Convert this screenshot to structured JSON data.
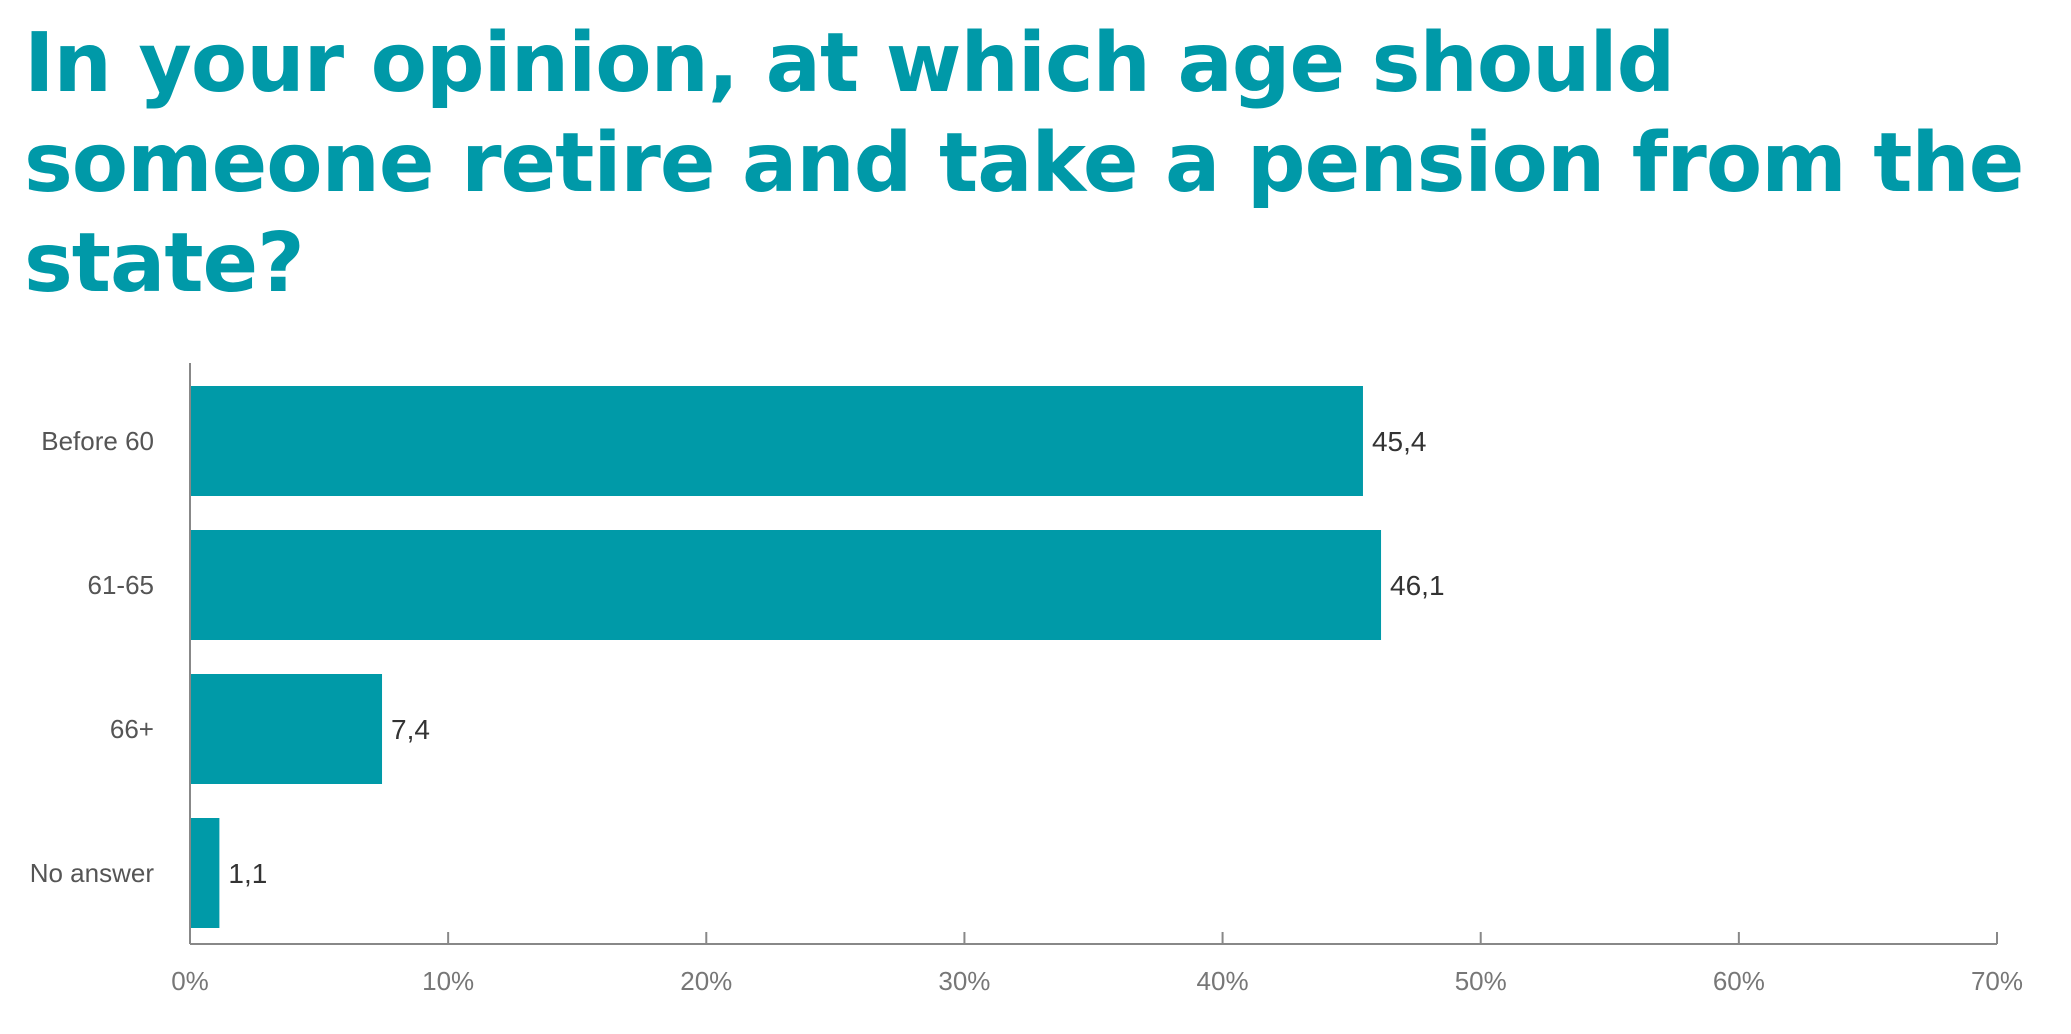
{
  "chart_data": {
    "type": "bar",
    "orientation": "horizontal",
    "title": "In your opinion, at which age should someone retire and take a pension from the state?",
    "categories": [
      "Before 60",
      "61-65",
      "66+",
      "No answer"
    ],
    "values": [
      45.4,
      46.1,
      7.4,
      1.1
    ],
    "data_labels": [
      "45,4",
      "46,1",
      "7,4",
      "1,1"
    ],
    "xlim": [
      0,
      70
    ],
    "x_ticks": [
      0,
      10,
      20,
      30,
      40,
      50,
      60,
      70
    ],
    "x_tick_labels": [
      "0%",
      "10%",
      "20%",
      "30%",
      "40%",
      "50%",
      "60%",
      "70%"
    ],
    "xlabel": "",
    "ylabel": "",
    "grid": false,
    "legend": "none",
    "bar_color": "#009aa8",
    "title_color": "#0099a8"
  }
}
